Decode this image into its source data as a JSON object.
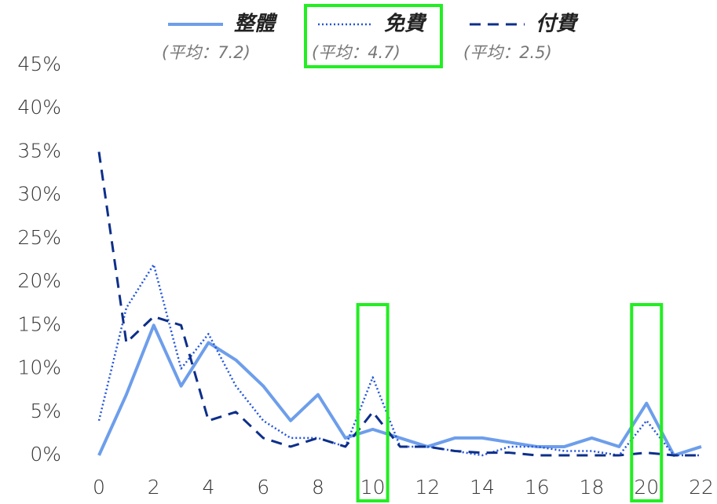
{
  "chart_data": {
    "type": "line",
    "x": [
      0,
      1,
      2,
      3,
      4,
      5,
      6,
      7,
      8,
      9,
      10,
      11,
      12,
      13,
      14,
      15,
      16,
      17,
      18,
      19,
      20,
      21,
      22
    ],
    "series": [
      {
        "name": "整體",
        "average_label": "(平均：7.2)",
        "color": "#6d9eeb",
        "dash": "solid",
        "values": [
          0,
          7,
          15,
          8,
          13,
          11,
          8,
          4,
          7,
          2,
          3,
          2,
          1,
          2,
          2,
          1.5,
          1,
          1,
          2,
          1,
          6,
          0,
          1
        ]
      },
      {
        "name": "免費",
        "average_label": "(平均：4.7)",
        "color": "#2255dd",
        "dash": "dotted",
        "values": [
          4,
          17,
          22,
          10,
          14,
          8,
          4,
          2,
          2,
          1,
          9,
          1,
          1,
          0.5,
          0,
          1,
          1,
          0.5,
          0.5,
          0,
          4,
          0,
          0
        ]
      },
      {
        "name": "付費",
        "average_label": "(平均：2.5)",
        "color": "#0d2f8a",
        "dash": "dashed",
        "values": [
          35,
          13,
          16,
          15,
          4,
          5,
          2,
          1,
          2,
          1,
          5,
          1,
          1,
          0.5,
          0.3,
          0.3,
          0,
          0,
          0,
          0,
          0.3,
          0,
          0
        ]
      }
    ],
    "xlim": [
      0,
      22
    ],
    "xticks": [
      0,
      2,
      4,
      6,
      8,
      10,
      12,
      14,
      16,
      18,
      20,
      22
    ],
    "ylim": [
      0,
      45
    ],
    "yticks": [
      {
        "value": 0,
        "label": "0%"
      },
      {
        "value": 5,
        "label": "5%"
      },
      {
        "value": 10,
        "label": "10%"
      },
      {
        "value": 15,
        "label": "15%"
      },
      {
        "value": 20,
        "label": "20%"
      },
      {
        "value": 25,
        "label": "25%"
      },
      {
        "value": 30,
        "label": "30%"
      },
      {
        "value": 35,
        "label": "35%"
      },
      {
        "value": 40,
        "label": "40%"
      },
      {
        "value": 45,
        "label": "45%"
      }
    ],
    "highlight_x": [
      10,
      20
    ],
    "highlight_color": "#22ee22"
  }
}
